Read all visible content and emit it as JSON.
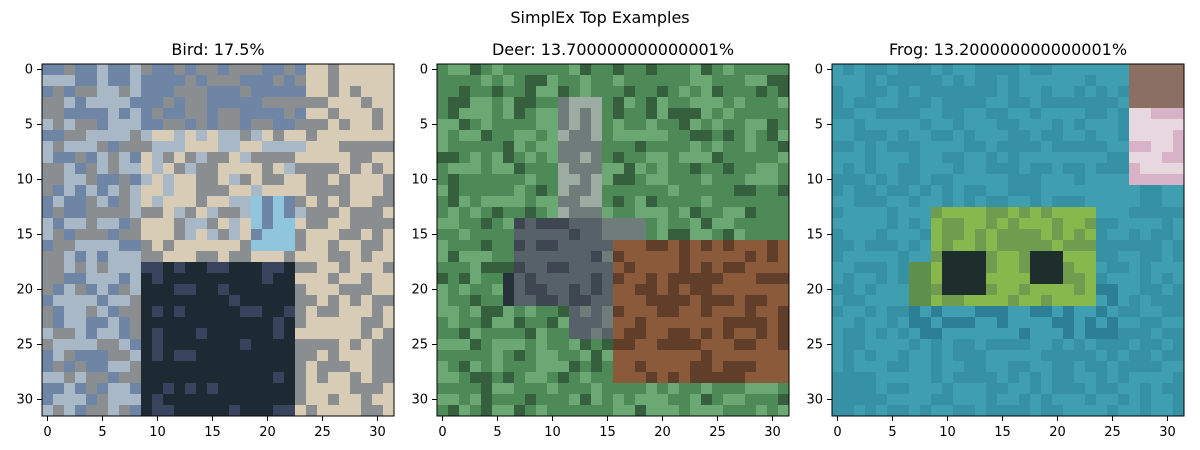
{
  "suptitle": "SimplEx Top Examples",
  "chart_data": [
    {
      "type": "heatmap",
      "title": "Bird: 17.5%",
      "xticks": [
        0,
        5,
        10,
        15,
        20,
        25,
        30
      ],
      "yticks": [
        0,
        5,
        10,
        15,
        20,
        25,
        30
      ],
      "xlim": [
        -0.5,
        31.5
      ],
      "ylim": [
        31.5,
        -0.5
      ],
      "image_size": [
        32,
        32
      ],
      "palette": {
        "sky": "#6f85a6",
        "pale_blue": "#a9b8c6",
        "beige": "#d9ccb6",
        "gray": "#8a8e91",
        "dark": "#1e2a33",
        "navy": "#39435d",
        "accent_blue": "#8fc6de"
      }
    },
    {
      "type": "heatmap",
      "title": "Deer: 13.700000000000001%",
      "xticks": [
        0,
        5,
        10,
        15,
        20,
        25,
        30
      ],
      "yticks": [
        0,
        5,
        10,
        15,
        20,
        25,
        30
      ],
      "xlim": [
        -0.5,
        31.5
      ],
      "ylim": [
        31.5,
        -0.5
      ],
      "image_size": [
        32,
        32
      ],
      "palette": {
        "green": "#4e8a57",
        "light_green": "#6ca874",
        "dark_green": "#355f3d",
        "gray": "#6f7c7a",
        "brown": "#8a5a3b",
        "dark_brown": "#603e2a",
        "deer_head": "#56616a"
      }
    },
    {
      "type": "heatmap",
      "title": "Frog: 13.200000000000001%",
      "xticks": [
        0,
        5,
        10,
        15,
        20,
        25,
        30
      ],
      "yticks": [
        0,
        5,
        10,
        15,
        20,
        25,
        30
      ],
      "xlim": [
        -0.5,
        31.5
      ],
      "ylim": [
        31.5,
        -0.5
      ],
      "image_size": [
        32,
        32
      ],
      "palette": {
        "teal": "#3f9fb0",
        "teal_dark": "#2d7f95",
        "frog_green": "#86b84d",
        "frog_dark": "#1e2e2c",
        "pink": "#d8b3c7",
        "brown": "#8b6f63"
      }
    }
  ]
}
